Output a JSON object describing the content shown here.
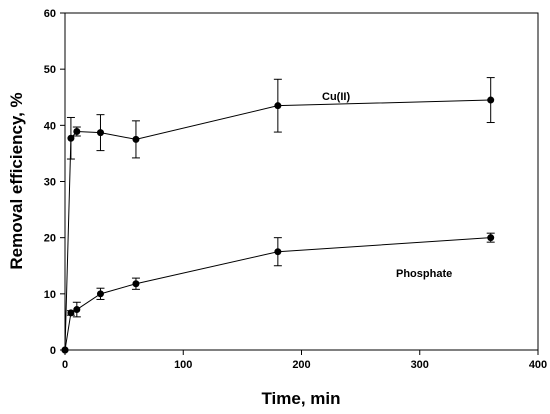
{
  "chart_data": {
    "type": "scatter",
    "title": "",
    "xlabel": "Time, min",
    "ylabel": "Removal efficiency, %",
    "xlim": [
      0,
      400
    ],
    "ylim": [
      0,
      60
    ],
    "x_ticks": [
      0,
      100,
      200,
      300,
      400
    ],
    "y_ticks": [
      0,
      10,
      20,
      30,
      40,
      50,
      60
    ],
    "x_tick_labels": [
      "0",
      "100",
      "200",
      "300",
      "400"
    ],
    "y_tick_labels": [
      "0",
      "10",
      "20",
      "30",
      "40",
      "50",
      "60"
    ],
    "grid": false,
    "legend": "none",
    "connected_lines": true,
    "error_bars": true,
    "marker": "filled-circle",
    "colors": {
      "series": "#000000",
      "background": "#ffffff"
    },
    "series": [
      {
        "name": "Cu(II)",
        "x": [
          0,
          5,
          10,
          30,
          60,
          180,
          360
        ],
        "y": [
          0,
          37.7,
          38.9,
          38.7,
          37.5,
          43.5,
          44.5
        ],
        "err": [
          0,
          3.7,
          0.8,
          3.2,
          3.3,
          4.7,
          4.0
        ]
      },
      {
        "name": "Phosphate",
        "x": [
          0,
          5,
          10,
          30,
          60,
          180,
          360
        ],
        "y": [
          0,
          6.6,
          7.2,
          10.0,
          11.8,
          17.5,
          20.0
        ],
        "err": [
          0,
          0.4,
          1.3,
          1.0,
          1.0,
          2.5,
          0.8
        ]
      }
    ]
  }
}
